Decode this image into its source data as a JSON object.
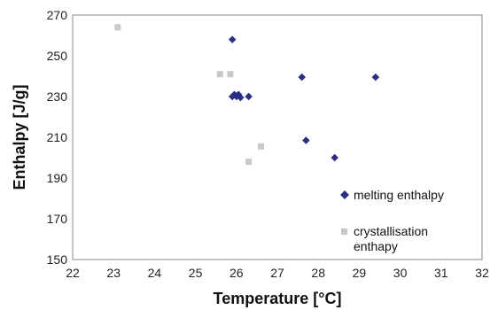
{
  "chart_data": {
    "type": "scatter",
    "xlabel": "Temperature [°C]",
    "ylabel": "Enthalpy [J/g]",
    "xlim": [
      22,
      32
    ],
    "ylim": [
      150,
      270
    ],
    "x_ticks": [
      22,
      23,
      24,
      25,
      26,
      27,
      28,
      29,
      30,
      31,
      32
    ],
    "y_ticks": [
      150,
      170,
      190,
      210,
      230,
      250,
      270
    ],
    "grid": false,
    "legend_position": "bottom-right (inside plot)",
    "series": [
      {
        "name": "melting enthalpy",
        "marker": "diamond",
        "color": "#2b2f7f",
        "points": [
          [
            25.9,
            258
          ],
          [
            25.9,
            230
          ],
          [
            25.95,
            231
          ],
          [
            26.0,
            230
          ],
          [
            26.05,
            231
          ],
          [
            26.1,
            229.5
          ],
          [
            26.3,
            230
          ],
          [
            27.6,
            239.5
          ],
          [
            29.4,
            239.5
          ],
          [
            27.7,
            208.5
          ],
          [
            28.4,
            200
          ]
        ]
      },
      {
        "name": "crystallisation\nenthapy",
        "marker": "square",
        "color": "#c8c8c8",
        "points": [
          [
            23.1,
            264
          ],
          [
            25.6,
            241
          ],
          [
            25.85,
            241
          ],
          [
            26.6,
            205.5
          ],
          [
            26.3,
            198
          ]
        ]
      }
    ]
  }
}
